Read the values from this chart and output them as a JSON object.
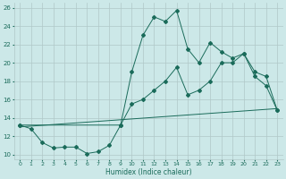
{
  "xlabel": "Humidex (Indice chaleur)",
  "xlim": [
    -0.5,
    23.5
  ],
  "ylim": [
    9.5,
    26.5
  ],
  "yticks": [
    10,
    12,
    14,
    16,
    18,
    20,
    22,
    24,
    26
  ],
  "xticks": [
    0,
    1,
    2,
    3,
    4,
    5,
    6,
    7,
    8,
    9,
    10,
    11,
    12,
    13,
    14,
    15,
    16,
    17,
    18,
    19,
    20,
    21,
    22,
    23
  ],
  "background_color": "#cce8e8",
  "grid_color": "#b0c8c8",
  "line_color": "#1a6b5a",
  "line1_x": [
    0,
    1,
    2,
    3,
    4,
    5,
    6,
    7,
    8,
    9,
    10,
    11,
    12,
    13,
    14,
    15,
    16,
    17,
    18,
    19,
    20,
    21,
    22,
    23
  ],
  "line1_y": [
    13.2,
    12.8,
    11.3,
    10.7,
    10.8,
    10.8,
    10.1,
    10.3,
    11.0,
    13.2,
    19.0,
    23.0,
    25.0,
    24.5,
    25.7,
    21.5,
    20.0,
    22.2,
    21.2,
    20.5,
    21.0,
    19.0,
    18.5,
    14.8
  ],
  "line2_x": [
    0,
    9,
    10,
    11,
    12,
    13,
    14,
    15,
    16,
    17,
    18,
    19,
    20,
    21,
    22,
    23
  ],
  "line2_y": [
    13.2,
    13.2,
    15.5,
    16.0,
    17.0,
    18.0,
    19.5,
    16.5,
    17.0,
    18.0,
    20.0,
    20.0,
    21.0,
    18.5,
    17.5,
    14.8
  ],
  "line3_x": [
    0,
    23
  ],
  "line3_y": [
    13.0,
    15.0
  ]
}
